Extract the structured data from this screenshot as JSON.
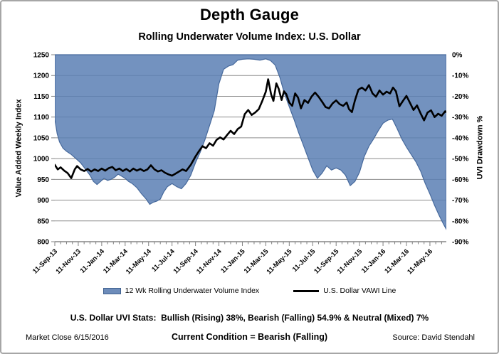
{
  "header": {
    "title": "Depth Gauge",
    "subtitle": "Rolling Underwater Volume Index: U.S. Dollar"
  },
  "legend": {
    "area_label": "12 Wk Rolling Underwater Volume Index",
    "line_label": "U.S. Dollar VAWI Line"
  },
  "footer": {
    "stats": "U.S. Dollar UVI Stats:  Bullish (Rising) 38%, Bearish (Falling) 54.9% & Neutral (Mixed) 7%",
    "condition": "Current Condition = Bearish (Falling)",
    "market_close": "Market Close 6/15/2016",
    "source": "Source: David Stendahl"
  },
  "colors": {
    "area_fill": "#5b7fb4",
    "area_border": "#46699c",
    "vawi_line": "#000000",
    "gridline": "#8c8c8c",
    "axis_line": "#808080",
    "frame_border": "#a6a6a6"
  },
  "chart_data": {
    "type": "area",
    "title": "Depth Gauge",
    "subtitle": "Rolling Underwater Volume Index: U.S. Dollar",
    "grid": true,
    "legend_position": "bottom",
    "x_tick_labels": [
      "11-Sep-13",
      "11-Nov-13",
      "11-Jan-14",
      "11-Mar-14",
      "11-May-14",
      "11-Jul-14",
      "11-Sep-14",
      "11-Nov-14",
      "11-Jan-15",
      "11-Mar-15",
      "11-May-15",
      "11-Jul-15",
      "11-Sep-15",
      "11-Nov-15",
      "11-Jan-16",
      "11-Mar-16",
      "11-May-16"
    ],
    "x_months_per_tick": 2,
    "x_range_months": [
      0,
      33.4
    ],
    "left_axis": {
      "title": "Value Added Weekly Index",
      "min": 800,
      "max": 1250,
      "step": 50,
      "tick_labels": [
        "1250",
        "1200",
        "1150",
        "1100",
        "1050",
        "1000",
        "950",
        "900",
        "850",
        "800"
      ]
    },
    "right_axis": {
      "title": "UVI Drawdown %",
      "min": -90,
      "max": 0,
      "step": 10,
      "tick_labels": [
        "0%",
        "-10%",
        "-20%",
        "-30%",
        "-40%",
        "-50%",
        "-60%",
        "-70%",
        "-80%",
        "-90%"
      ]
    },
    "series": [
      {
        "name": "12 Wk Rolling Underwater Volume Index",
        "type": "area",
        "axis": "right",
        "unit": "% drawdown",
        "points": [
          [
            0,
            -31
          ],
          [
            0.2,
            -38
          ],
          [
            0.4,
            -42
          ],
          [
            0.7,
            -45
          ],
          [
            1,
            -46.5
          ],
          [
            1.4,
            -48
          ],
          [
            1.8,
            -50
          ],
          [
            2.2,
            -52
          ],
          [
            2.6,
            -55
          ],
          [
            3,
            -58
          ],
          [
            3.3,
            -61
          ],
          [
            3.6,
            -62.5
          ],
          [
            3.9,
            -61
          ],
          [
            4.2,
            -59.5
          ],
          [
            4.5,
            -60.5
          ],
          [
            4.8,
            -60
          ],
          [
            5.1,
            -59
          ],
          [
            5.4,
            -57.5
          ],
          [
            5.7,
            -58.5
          ],
          [
            6,
            -59.5
          ],
          [
            6.3,
            -61
          ],
          [
            6.6,
            -62
          ],
          [
            7,
            -64
          ],
          [
            7.4,
            -67
          ],
          [
            7.8,
            -69.5
          ],
          [
            8.1,
            -72
          ],
          [
            8.4,
            -71
          ],
          [
            8.7,
            -70.5
          ],
          [
            9,
            -69.5
          ],
          [
            9.3,
            -66
          ],
          [
            9.6,
            -63.5
          ],
          [
            10,
            -62
          ],
          [
            10.4,
            -63.5
          ],
          [
            10.8,
            -64.5
          ],
          [
            11.2,
            -62
          ],
          [
            11.6,
            -58
          ],
          [
            12,
            -52
          ],
          [
            12.4,
            -47
          ],
          [
            12.8,
            -41
          ],
          [
            13.2,
            -34
          ],
          [
            13.6,
            -27
          ],
          [
            14,
            -14
          ],
          [
            14.4,
            -7
          ],
          [
            14.8,
            -5.5
          ],
          [
            15.2,
            -4.8
          ],
          [
            15.6,
            -2.6
          ],
          [
            16,
            -2.2
          ],
          [
            16.5,
            -2
          ],
          [
            17,
            -2.2
          ],
          [
            17.5,
            -2.6
          ],
          [
            18,
            -2
          ],
          [
            18.4,
            -2.8
          ],
          [
            18.8,
            -5
          ],
          [
            19.2,
            -11
          ],
          [
            19.6,
            -19
          ],
          [
            20,
            -25
          ],
          [
            20.4,
            -31
          ],
          [
            20.8,
            -37.5
          ],
          [
            21.2,
            -43.5
          ],
          [
            21.6,
            -49.5
          ],
          [
            22,
            -55.5
          ],
          [
            22.4,
            -59.5
          ],
          [
            22.8,
            -57
          ],
          [
            23.2,
            -53.5
          ],
          [
            23.6,
            -55.5
          ],
          [
            24,
            -54.5
          ],
          [
            24.4,
            -55.5
          ],
          [
            24.8,
            -58
          ],
          [
            25.2,
            -63
          ],
          [
            25.6,
            -61
          ],
          [
            26,
            -56.5
          ],
          [
            26.4,
            -49
          ],
          [
            26.8,
            -44
          ],
          [
            27.2,
            -40.5
          ],
          [
            27.6,
            -36.5
          ],
          [
            28,
            -33
          ],
          [
            28.4,
            -31.5
          ],
          [
            28.8,
            -31
          ],
          [
            29.2,
            -35.5
          ],
          [
            29.6,
            -40.5
          ],
          [
            30,
            -44.5
          ],
          [
            30.4,
            -48
          ],
          [
            30.8,
            -51.5
          ],
          [
            31.2,
            -56
          ],
          [
            31.6,
            -62
          ],
          [
            32,
            -67
          ],
          [
            32.4,
            -72.5
          ],
          [
            32.8,
            -77.5
          ],
          [
            33.2,
            -82
          ],
          [
            33.4,
            -84
          ]
        ]
      },
      {
        "name": "U.S. Dollar VAWI Line",
        "type": "line",
        "axis": "left",
        "unit": "index",
        "points": [
          [
            0,
            985
          ],
          [
            0.25,
            974
          ],
          [
            0.5,
            979
          ],
          [
            0.8,
            971
          ],
          [
            1.1,
            965
          ],
          [
            1.4,
            953
          ],
          [
            1.7,
            974
          ],
          [
            1.9,
            982
          ],
          [
            2.2,
            974
          ],
          [
            2.5,
            970
          ],
          [
            2.8,
            975
          ],
          [
            3.1,
            969
          ],
          [
            3.4,
            974
          ],
          [
            3.7,
            970
          ],
          [
            4,
            976
          ],
          [
            4.3,
            971
          ],
          [
            4.6,
            977
          ],
          [
            4.9,
            980
          ],
          [
            5.2,
            972
          ],
          [
            5.5,
            976
          ],
          [
            5.8,
            970
          ],
          [
            6.1,
            975
          ],
          [
            6.4,
            969
          ],
          [
            6.7,
            976
          ],
          [
            7,
            971
          ],
          [
            7.3,
            975
          ],
          [
            7.6,
            970
          ],
          [
            7.9,
            974
          ],
          [
            8.2,
            984
          ],
          [
            8.5,
            974
          ],
          [
            8.8,
            969
          ],
          [
            9.1,
            972
          ],
          [
            9.4,
            966
          ],
          [
            9.7,
            962
          ],
          [
            10,
            959
          ],
          [
            10.3,
            964
          ],
          [
            10.6,
            969
          ],
          [
            10.9,
            974
          ],
          [
            11.2,
            970
          ],
          [
            11.6,
            985
          ],
          [
            12,
            1005
          ],
          [
            12.3,
            1018
          ],
          [
            12.6,
            1030
          ],
          [
            12.9,
            1025
          ],
          [
            13.2,
            1037
          ],
          [
            13.5,
            1031
          ],
          [
            13.8,
            1045
          ],
          [
            14.1,
            1051
          ],
          [
            14.4,
            1046
          ],
          [
            14.7,
            1057
          ],
          [
            15,
            1067
          ],
          [
            15.3,
            1059
          ],
          [
            15.6,
            1071
          ],
          [
            15.9,
            1077
          ],
          [
            16.2,
            1107
          ],
          [
            16.5,
            1117
          ],
          [
            16.8,
            1105
          ],
          [
            17.1,
            1111
          ],
          [
            17.4,
            1119
          ],
          [
            17.7,
            1139
          ],
          [
            18,
            1161
          ],
          [
            18.2,
            1191
          ],
          [
            18.45,
            1155
          ],
          [
            18.65,
            1139
          ],
          [
            18.9,
            1181
          ],
          [
            19.1,
            1168
          ],
          [
            19.35,
            1141
          ],
          [
            19.55,
            1162
          ],
          [
            19.75,
            1155
          ],
          [
            20,
            1135
          ],
          [
            20.25,
            1127
          ],
          [
            20.5,
            1157
          ],
          [
            20.75,
            1147
          ],
          [
            21,
            1121
          ],
          [
            21.3,
            1141
          ],
          [
            21.6,
            1134
          ],
          [
            21.9,
            1149
          ],
          [
            22.2,
            1159
          ],
          [
            22.5,
            1149
          ],
          [
            22.8,
            1137
          ],
          [
            23.1,
            1124
          ],
          [
            23.4,
            1121
          ],
          [
            23.7,
            1133
          ],
          [
            24,
            1140
          ],
          [
            24.3,
            1131
          ],
          [
            24.6,
            1127
          ],
          [
            24.9,
            1135
          ],
          [
            25.1,
            1119
          ],
          [
            25.35,
            1112
          ],
          [
            25.6,
            1140
          ],
          [
            25.9,
            1166
          ],
          [
            26.2,
            1171
          ],
          [
            26.5,
            1164
          ],
          [
            26.8,
            1177
          ],
          [
            27.1,
            1157
          ],
          [
            27.4,
            1149
          ],
          [
            27.7,
            1164
          ],
          [
            28,
            1154
          ],
          [
            28.3,
            1161
          ],
          [
            28.6,
            1157
          ],
          [
            28.85,
            1171
          ],
          [
            29.1,
            1162
          ],
          [
            29.4,
            1126
          ],
          [
            29.7,
            1139
          ],
          [
            30,
            1151
          ],
          [
            30.3,
            1134
          ],
          [
            30.6,
            1117
          ],
          [
            30.9,
            1128
          ],
          [
            31.2,
            1109
          ],
          [
            31.5,
            1092
          ],
          [
            31.8,
            1111
          ],
          [
            32.1,
            1116
          ],
          [
            32.4,
            1100
          ],
          [
            32.7,
            1108
          ],
          [
            33,
            1103
          ],
          [
            33.3,
            1114
          ],
          [
            33.4,
            1112
          ]
        ]
      }
    ]
  }
}
